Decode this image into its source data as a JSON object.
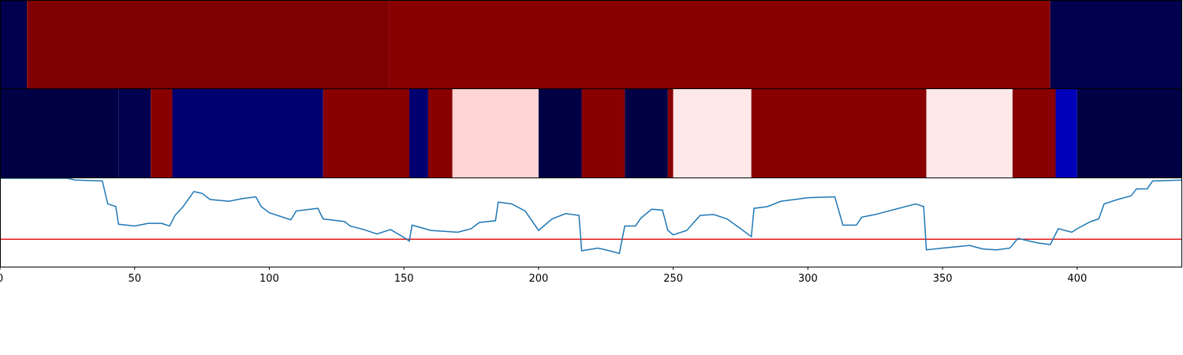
{
  "chart_data": [
    {
      "type": "strip",
      "bins": [
        0,
        10,
        144.5,
        390,
        439
      ],
      "colors": [
        "#00004c",
        "#7f0000",
        "#880000",
        "#00004c"
      ],
      "xlim": [
        0,
        439
      ]
    },
    {
      "type": "strip",
      "bins": [
        0,
        44,
        56,
        64,
        120,
        152,
        159,
        168,
        200,
        216,
        232,
        248,
        250,
        279,
        344,
        376,
        392,
        400,
        439
      ],
      "colors": [
        "#000045",
        "#00004f",
        "#880000",
        "#000070",
        "#880000",
        "#000070",
        "#880000",
        "#ffd4d4",
        "#000045",
        "#880000",
        "#000045",
        "#880000",
        "#ffe8e8",
        "#880000",
        "#ffe8e8",
        "#880000",
        "#0000b8",
        "#000045"
      ],
      "xlim": [
        0,
        439
      ]
    },
    {
      "type": "line",
      "x": [
        0,
        25,
        28,
        38,
        40,
        43,
        44,
        50,
        55,
        60,
        63,
        65,
        68,
        72,
        75,
        78,
        85,
        90,
        95,
        97,
        100,
        108,
        110,
        118,
        120,
        128,
        130,
        135,
        140,
        145,
        150,
        152,
        153,
        160,
        170,
        175,
        178,
        184,
        185,
        190,
        195,
        200,
        205,
        210,
        215,
        216,
        222,
        225,
        230,
        232,
        236,
        238,
        242,
        246,
        248,
        250,
        255,
        260,
        265,
        270,
        275,
        279,
        280,
        285,
        290,
        300,
        310,
        313,
        318,
        320,
        325,
        330,
        335,
        340,
        343,
        344,
        350,
        360,
        365,
        370,
        375,
        378,
        385,
        390,
        393,
        398,
        400,
        405,
        408,
        410,
        415,
        420,
        422,
        426,
        428,
        439
      ],
      "values": [
        1.0,
        1.0,
        0.98,
        0.97,
        0.71,
        0.68,
        0.48,
        0.46,
        0.49,
        0.49,
        0.46,
        0.58,
        0.68,
        0.85,
        0.83,
        0.76,
        0.74,
        0.77,
        0.79,
        0.68,
        0.61,
        0.53,
        0.63,
        0.66,
        0.54,
        0.51,
        0.46,
        0.42,
        0.37,
        0.42,
        0.33,
        0.29,
        0.47,
        0.41,
        0.39,
        0.43,
        0.5,
        0.52,
        0.73,
        0.71,
        0.63,
        0.41,
        0.54,
        0.6,
        0.58,
        0.18,
        0.21,
        0.19,
        0.15,
        0.46,
        0.46,
        0.55,
        0.65,
        0.64,
        0.41,
        0.36,
        0.41,
        0.58,
        0.59,
        0.54,
        0.43,
        0.34,
        0.66,
        0.68,
        0.74,
        0.78,
        0.79,
        0.47,
        0.47,
        0.56,
        0.59,
        0.63,
        0.67,
        0.71,
        0.68,
        0.19,
        0.21,
        0.24,
        0.2,
        0.19,
        0.21,
        0.32,
        0.27,
        0.25,
        0.43,
        0.39,
        0.43,
        0.51,
        0.54,
        0.71,
        0.76,
        0.8,
        0.88,
        0.88,
        0.97,
        0.98
      ],
      "color": "#1f77b4",
      "hline": {
        "value": 0.31,
        "color": "#e31a1c"
      },
      "xlim": [
        0,
        439
      ],
      "ylim": [
        0,
        1
      ],
      "xticks": [
        0,
        50,
        100,
        150,
        200,
        250,
        300,
        350,
        400
      ]
    }
  ]
}
